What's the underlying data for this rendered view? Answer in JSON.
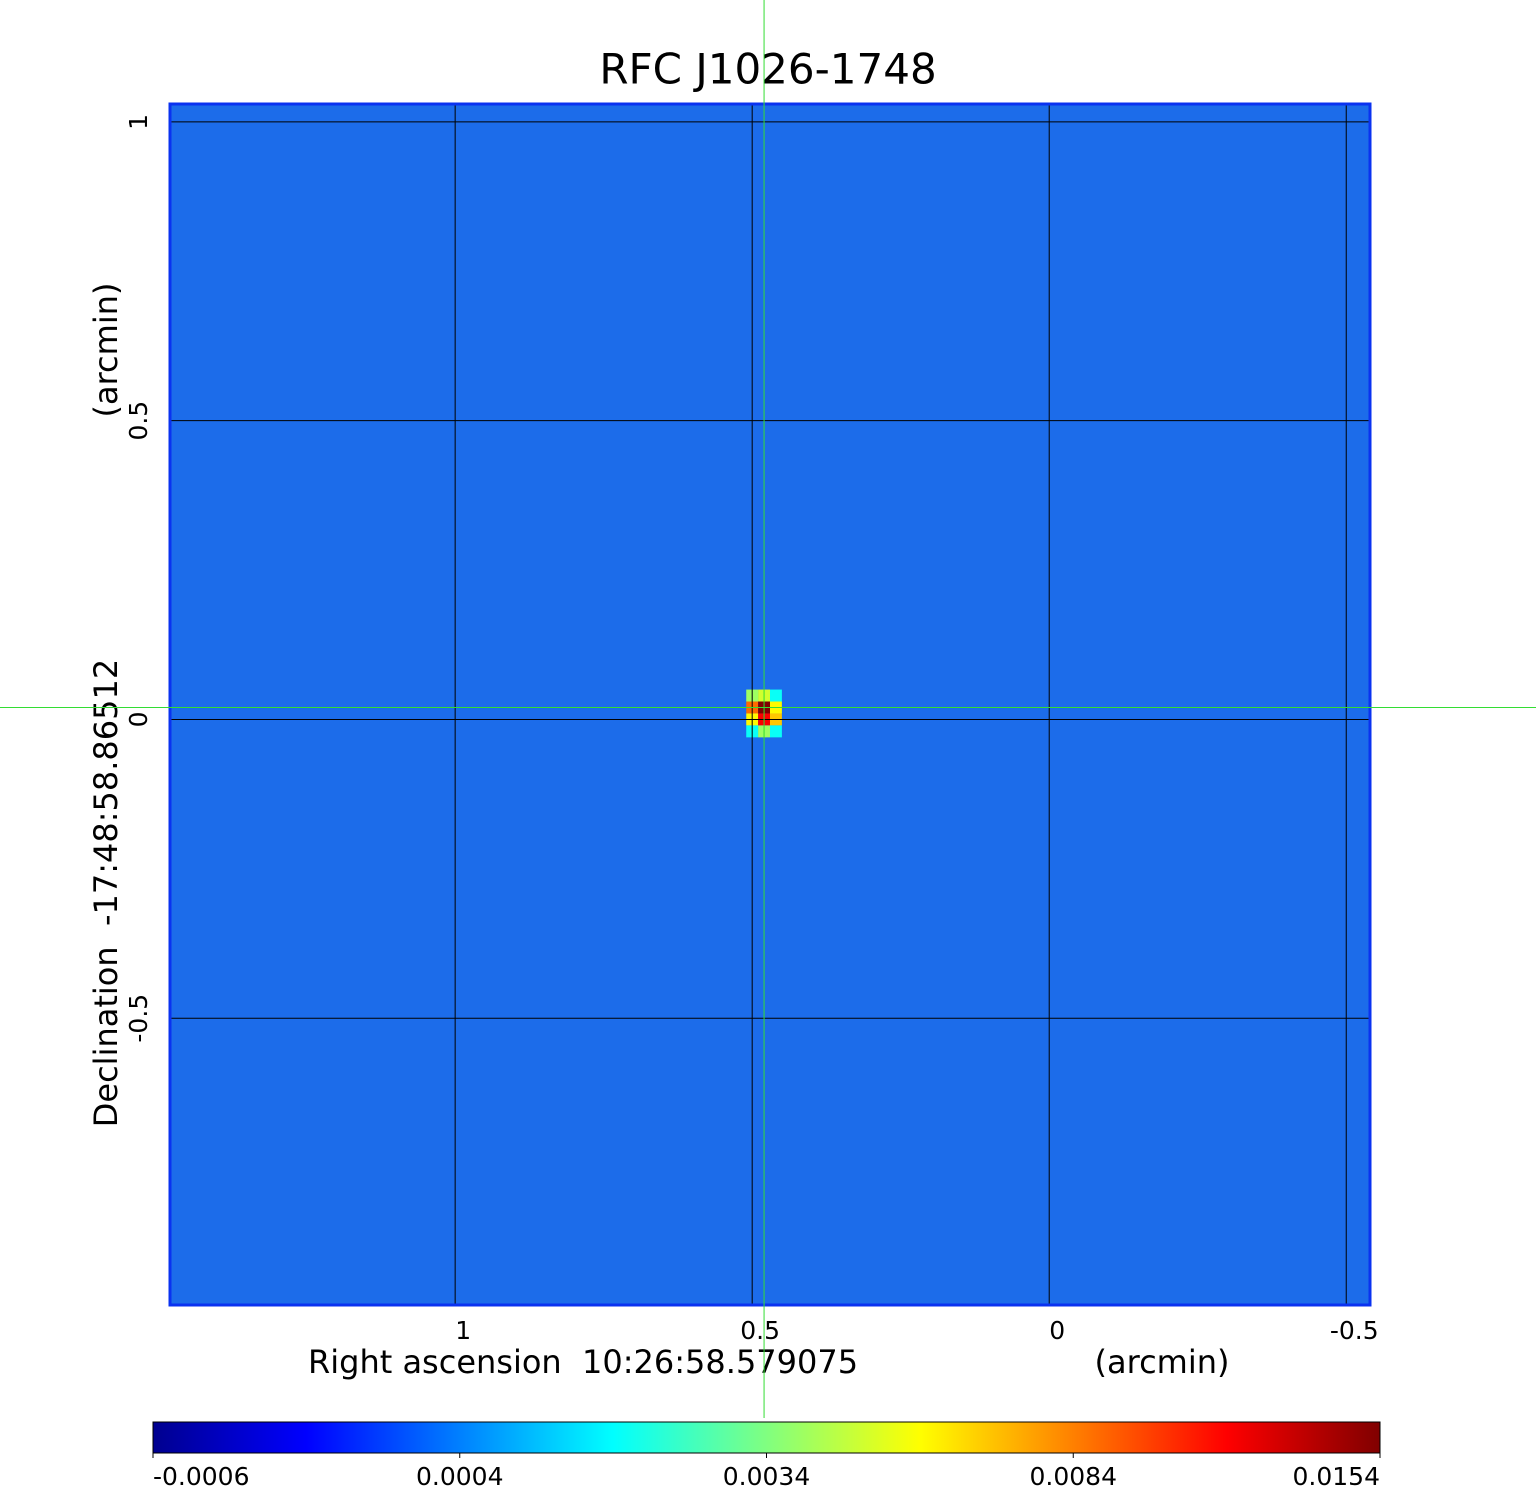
{
  "chart_data": {
    "type": "image",
    "title": "RFC J1026-1748",
    "title_color": "#1414d2",
    "x_label": "Right ascension  10:26:58.579075",
    "x_unit": "(arcmin)",
    "y_label": "Declination  -17:48:58.86512",
    "y_unit": "(arcmin)",
    "xlim": [
      1.48,
      -0.54
    ],
    "ylim": [
      -0.98,
      1.03
    ],
    "xticks": [
      1.0,
      0.5,
      0.0,
      -0.5
    ],
    "yticks": [
      1.0,
      0.5,
      0.0,
      -0.5
    ],
    "grid": true,
    "background_color": "#1c6cea",
    "pixel_size": 0.02,
    "source": [
      {
        "x": 0.5,
        "y": 0.04,
        "value": 0.004
      },
      {
        "x": 0.48,
        "y": 0.04,
        "value": 0.005
      },
      {
        "x": 0.46,
        "y": 0.04,
        "value": 0.002
      },
      {
        "x": 0.5,
        "y": 0.02,
        "value": 0.009
      },
      {
        "x": 0.48,
        "y": 0.02,
        "value": 0.0154
      },
      {
        "x": 0.46,
        "y": 0.02,
        "value": 0.006
      },
      {
        "x": 0.5,
        "y": 0.0,
        "value": 0.006
      },
      {
        "x": 0.48,
        "y": 0.0,
        "value": 0.012
      },
      {
        "x": 0.46,
        "y": 0.0,
        "value": 0.007
      },
      {
        "x": 0.5,
        "y": -0.02,
        "value": 0.002
      },
      {
        "x": 0.48,
        "y": -0.02,
        "value": 0.004
      },
      {
        "x": 0.46,
        "y": -0.02,
        "value": 0.002
      }
    ],
    "crosshair": {
      "x": 0.48,
      "y": 0.02,
      "color": "#33dd33"
    },
    "colorbar_ticks": [
      -0.0006,
      0.0004,
      0.0034,
      0.0084,
      0.0154
    ],
    "colormap": [
      "#00008f",
      "#0000ff",
      "#0080ff",
      "#00ffff",
      "#80ff80",
      "#ffff00",
      "#ff8000",
      "#ff0000",
      "#800000"
    ]
  }
}
